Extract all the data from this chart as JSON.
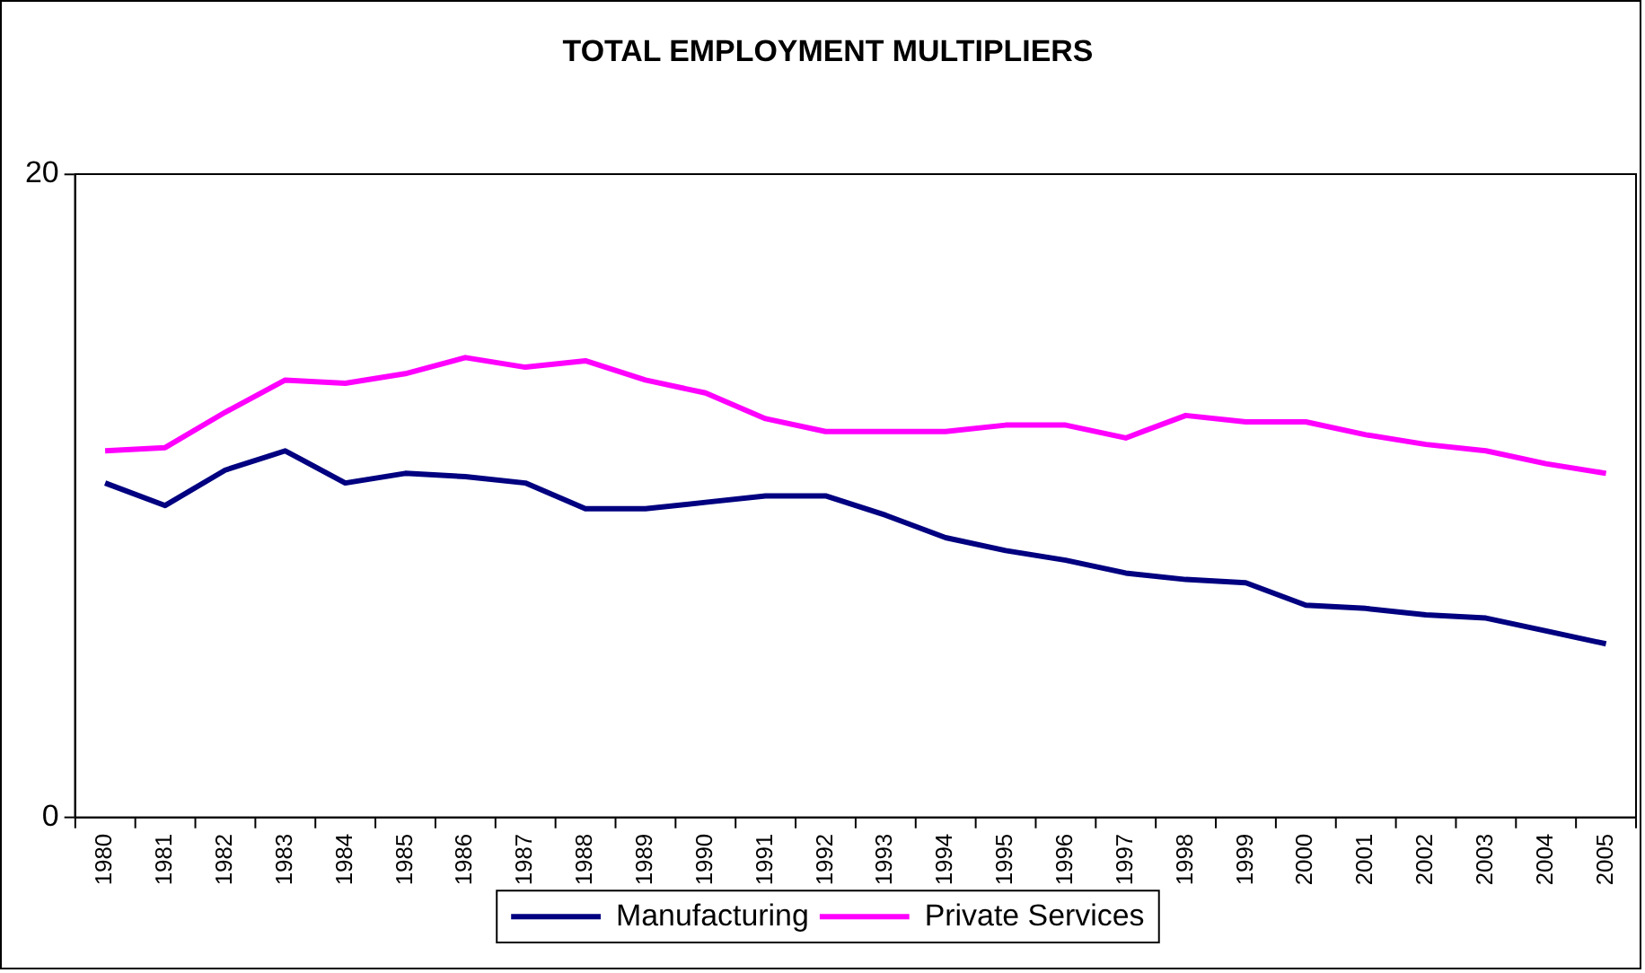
{
  "chart_data": {
    "type": "line",
    "title": "TOTAL EMPLOYMENT MULTIPLIERS",
    "categories": [
      "1980",
      "1981",
      "1982",
      "1983",
      "1984",
      "1985",
      "1986",
      "1987",
      "1988",
      "1989",
      "1990",
      "1991",
      "1992",
      "1993",
      "1994",
      "1995",
      "1996",
      "1997",
      "1998",
      "1999",
      "2000",
      "2001",
      "2002",
      "2003",
      "2004",
      "2005"
    ],
    "series": [
      {
        "name": "Manufacturing",
        "color": "#000080",
        "values": [
          10.4,
          9.7,
          10.8,
          11.4,
          10.4,
          10.7,
          10.6,
          10.4,
          9.6,
          9.6,
          9.8,
          10.0,
          10.0,
          9.4,
          8.7,
          8.3,
          8.0,
          7.6,
          7.4,
          7.3,
          6.6,
          6.5,
          6.3,
          6.2,
          5.8,
          5.4
        ]
      },
      {
        "name": "Private Services",
        "color": "#ff00ff",
        "values": [
          11.4,
          11.5,
          12.6,
          13.6,
          13.5,
          13.8,
          14.3,
          14.0,
          14.2,
          13.6,
          13.2,
          12.4,
          12.0,
          12.0,
          12.0,
          12.2,
          12.2,
          11.8,
          12.5,
          12.3,
          12.3,
          11.9,
          11.6,
          11.4,
          11.0,
          10.7
        ]
      }
    ],
    "ylim": [
      0,
      20
    ],
    "yticks": [
      0,
      20
    ],
    "grid": false,
    "legend": "bottom",
    "marker": "none",
    "line_style": "solid"
  }
}
